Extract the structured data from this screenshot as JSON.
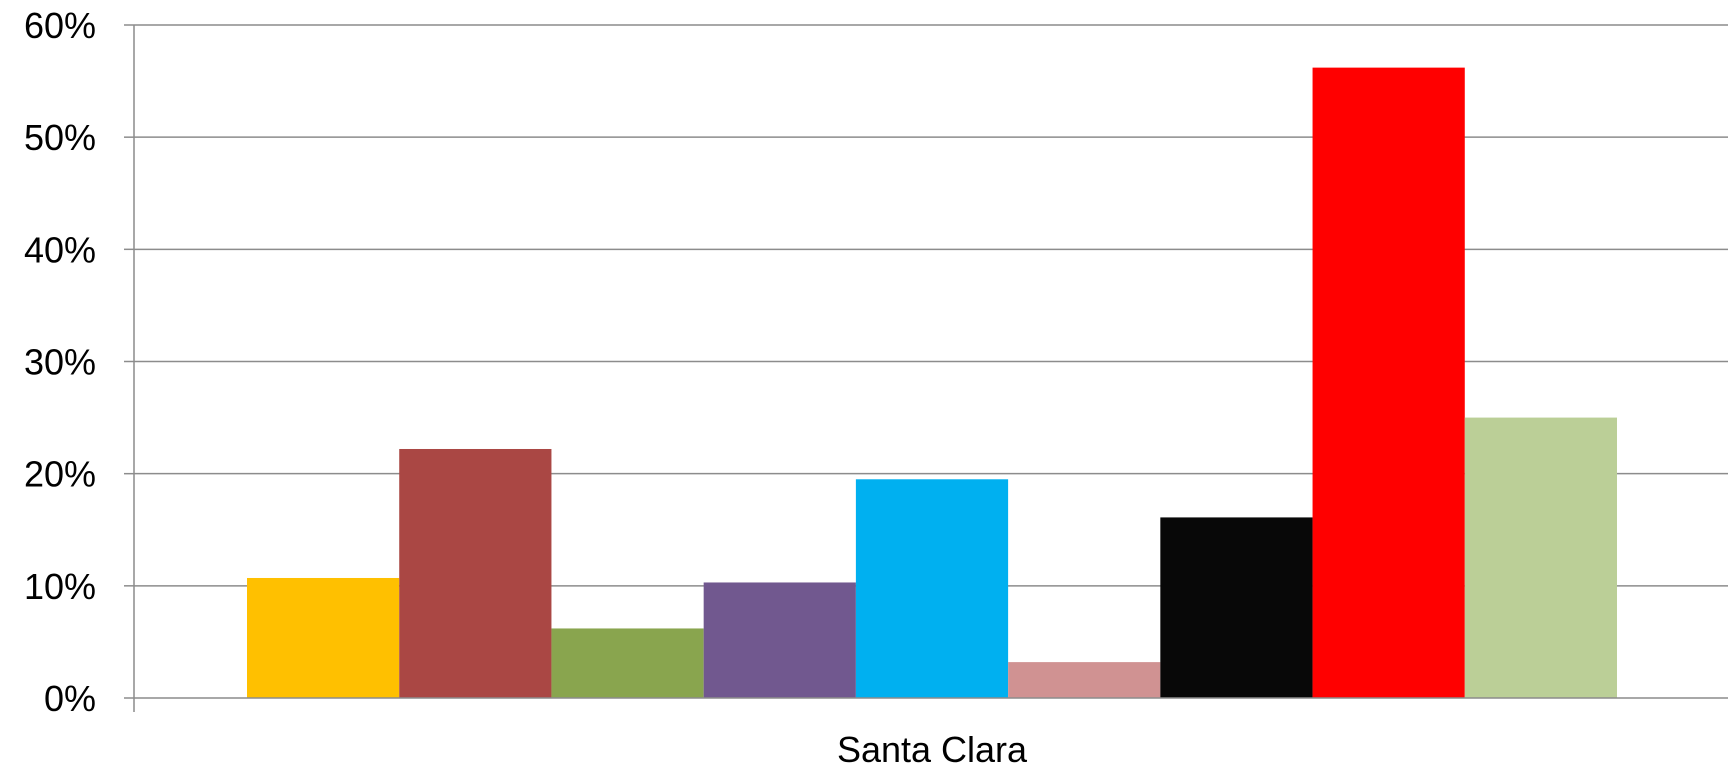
{
  "chart_data": {
    "type": "bar",
    "categories": [
      "Santa Clara"
    ],
    "series": [
      {
        "values": [
          10.7
        ],
        "color": "#FFC000"
      },
      {
        "values": [
          22.2
        ],
        "color": "#AA4744"
      },
      {
        "values": [
          6.2
        ],
        "color": "#89A54E"
      },
      {
        "values": [
          10.3
        ],
        "color": "#71588F"
      },
      {
        "values": [
          19.5
        ],
        "color": "#00B0F0"
      },
      {
        "values": [
          3.2
        ],
        "color": "#D09292"
      },
      {
        "values": [
          16.1
        ],
        "color": "#080808"
      },
      {
        "values": [
          56.2
        ],
        "color": "#FF0000"
      },
      {
        "values": [
          25.0
        ],
        "color": "#BBCF97"
      }
    ],
    "title": "",
    "xlabel": "",
    "ylabel": "",
    "ylim": [
      0,
      60
    ],
    "yticks": [
      0,
      10,
      20,
      30,
      40,
      50,
      60
    ],
    "ytick_labels": [
      "0%",
      "10%",
      "20%",
      "30%",
      "40%",
      "50%",
      "60%"
    ],
    "grid": true,
    "legend": "none",
    "gridline_color": "#8C8C8C"
  }
}
